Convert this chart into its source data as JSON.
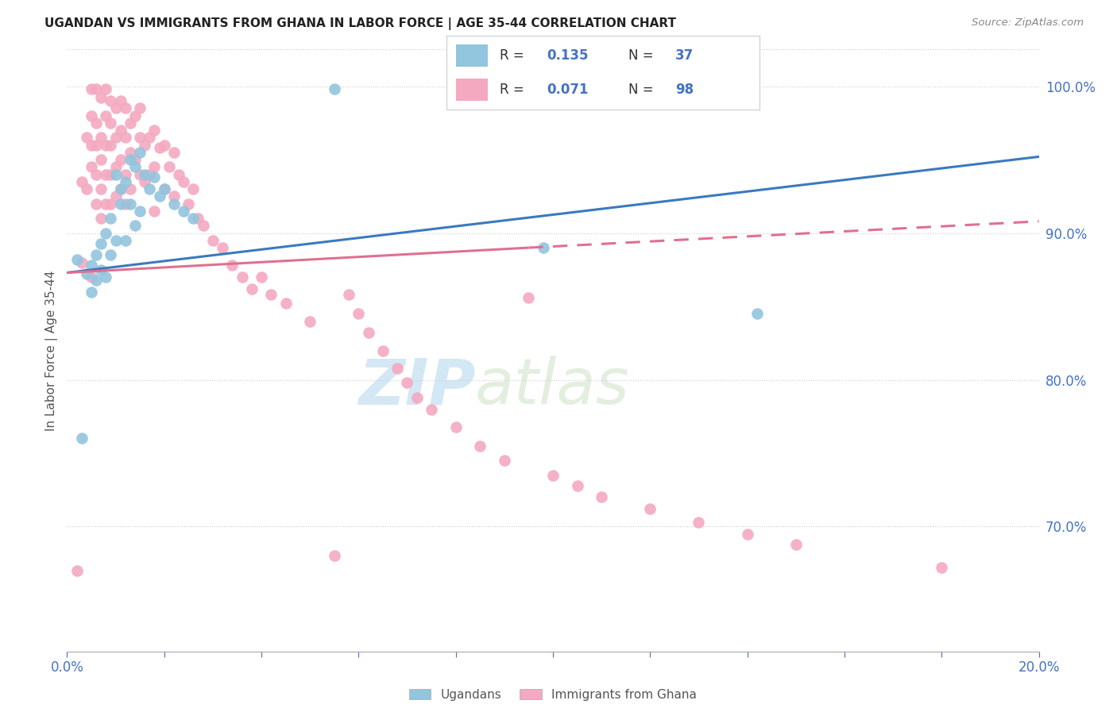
{
  "title": "UGANDAN VS IMMIGRANTS FROM GHANA IN LABOR FORCE | AGE 35-44 CORRELATION CHART",
  "source": "Source: ZipAtlas.com",
  "ylabel": "In Labor Force | Age 35-44",
  "xlim": [
    0.0,
    0.2
  ],
  "ylim": [
    0.615,
    1.025
  ],
  "yticks": [
    0.7,
    0.8,
    0.9,
    1.0
  ],
  "ytick_labels": [
    "70.0%",
    "80.0%",
    "90.0%",
    "100.0%"
  ],
  "xticks": [
    0.0,
    0.02,
    0.04,
    0.06,
    0.08,
    0.1,
    0.12,
    0.14,
    0.16,
    0.18,
    0.2
  ],
  "xtick_labels": [
    "0.0%",
    "",
    "",
    "",
    "",
    "",
    "",
    "",
    "",
    "",
    "20.0%"
  ],
  "blue_color": "#92c5de",
  "pink_color": "#f4a9c0",
  "blue_line_color": "#3a7abf",
  "pink_line_color": "#e07090",
  "axis_color": "#4472c4",
  "watermark_zip": "ZIP",
  "watermark_atlas": "atlas",
  "blue_scatter_x": [
    0.002,
    0.003,
    0.004,
    0.005,
    0.005,
    0.006,
    0.006,
    0.007,
    0.007,
    0.008,
    0.008,
    0.009,
    0.009,
    0.01,
    0.01,
    0.011,
    0.011,
    0.012,
    0.012,
    0.013,
    0.013,
    0.014,
    0.014,
    0.015,
    0.015,
    0.016,
    0.017,
    0.018,
    0.019,
    0.02,
    0.022,
    0.024,
    0.026,
    0.055,
    0.098,
    0.142
  ],
  "blue_scatter_y": [
    0.882,
    0.76,
    0.872,
    0.86,
    0.878,
    0.885,
    0.868,
    0.893,
    0.875,
    0.9,
    0.87,
    0.91,
    0.885,
    0.94,
    0.895,
    0.93,
    0.92,
    0.935,
    0.895,
    0.95,
    0.92,
    0.945,
    0.905,
    0.955,
    0.915,
    0.94,
    0.93,
    0.938,
    0.925,
    0.93,
    0.92,
    0.915,
    0.91,
    0.998,
    0.89,
    0.845
  ],
  "pink_scatter_x": [
    0.002,
    0.003,
    0.003,
    0.004,
    0.004,
    0.005,
    0.005,
    0.005,
    0.005,
    0.005,
    0.006,
    0.006,
    0.006,
    0.006,
    0.006,
    0.007,
    0.007,
    0.007,
    0.007,
    0.007,
    0.008,
    0.008,
    0.008,
    0.008,
    0.008,
    0.009,
    0.009,
    0.009,
    0.009,
    0.009,
    0.01,
    0.01,
    0.01,
    0.01,
    0.011,
    0.011,
    0.011,
    0.011,
    0.012,
    0.012,
    0.012,
    0.012,
    0.013,
    0.013,
    0.013,
    0.014,
    0.014,
    0.015,
    0.015,
    0.015,
    0.016,
    0.016,
    0.017,
    0.017,
    0.018,
    0.018,
    0.018,
    0.019,
    0.02,
    0.02,
    0.021,
    0.022,
    0.022,
    0.023,
    0.024,
    0.025,
    0.026,
    0.027,
    0.028,
    0.03,
    0.032,
    0.034,
    0.036,
    0.038,
    0.04,
    0.042,
    0.045,
    0.05,
    0.055,
    0.058,
    0.06,
    0.062,
    0.065,
    0.068,
    0.07,
    0.072,
    0.075,
    0.08,
    0.085,
    0.09,
    0.095,
    0.1,
    0.105,
    0.11,
    0.12,
    0.13,
    0.14,
    0.15,
    0.18
  ],
  "pink_scatter_y": [
    0.67,
    0.935,
    0.88,
    0.965,
    0.93,
    0.998,
    0.98,
    0.96,
    0.945,
    0.87,
    0.998,
    0.975,
    0.96,
    0.94,
    0.92,
    0.992,
    0.965,
    0.95,
    0.93,
    0.91,
    0.998,
    0.98,
    0.96,
    0.94,
    0.92,
    0.99,
    0.975,
    0.96,
    0.94,
    0.92,
    0.985,
    0.965,
    0.945,
    0.925,
    0.99,
    0.97,
    0.95,
    0.93,
    0.985,
    0.965,
    0.94,
    0.92,
    0.975,
    0.955,
    0.93,
    0.98,
    0.95,
    0.985,
    0.965,
    0.94,
    0.96,
    0.935,
    0.965,
    0.94,
    0.97,
    0.945,
    0.915,
    0.958,
    0.96,
    0.93,
    0.945,
    0.955,
    0.925,
    0.94,
    0.935,
    0.92,
    0.93,
    0.91,
    0.905,
    0.895,
    0.89,
    0.878,
    0.87,
    0.862,
    0.87,
    0.858,
    0.852,
    0.84,
    0.68,
    0.858,
    0.845,
    0.832,
    0.82,
    0.808,
    0.798,
    0.788,
    0.78,
    0.768,
    0.755,
    0.745,
    0.856,
    0.735,
    0.728,
    0.72,
    0.712,
    0.703,
    0.695,
    0.688,
    0.672
  ]
}
